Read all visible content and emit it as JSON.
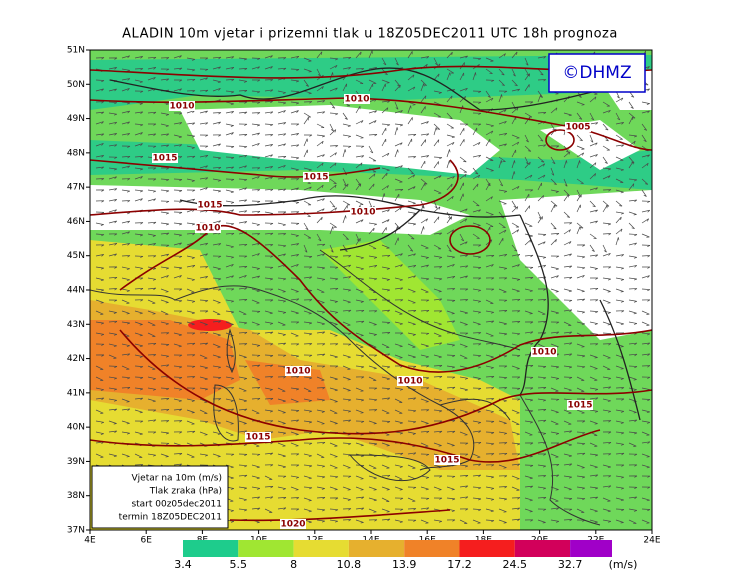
{
  "title": "ALADIN 10m vjetar i prizemni tlak u 18Z05DEC2011 UTC 18h prognoza",
  "logo": "©DHMZ",
  "map": {
    "latlim": [
      37,
      51
    ],
    "lonlim": [
      4,
      24
    ],
    "latticks": [
      {
        "value": 51,
        "label": "51N"
      },
      {
        "value": 50,
        "label": "50N"
      },
      {
        "value": 49,
        "label": "49N"
      },
      {
        "value": 48,
        "label": "48N"
      },
      {
        "value": 47,
        "label": "47N"
      },
      {
        "value": 46,
        "label": "46N"
      },
      {
        "value": 45,
        "label": "45N"
      },
      {
        "value": 44,
        "label": "44N"
      },
      {
        "value": 43,
        "label": "43N"
      },
      {
        "value": 42,
        "label": "42N"
      },
      {
        "value": 41,
        "label": "41N"
      },
      {
        "value": 40,
        "label": "40N"
      },
      {
        "value": 39,
        "label": "39N"
      },
      {
        "value": 38,
        "label": "38N"
      },
      {
        "value": 37,
        "label": "37N"
      }
    ],
    "lonticks": [
      {
        "value": 4,
        "label": "4E"
      },
      {
        "value": 6,
        "label": "6E"
      },
      {
        "value": 8,
        "label": "8E"
      },
      {
        "value": 10,
        "label": "10E"
      },
      {
        "value": 12,
        "label": "12E"
      },
      {
        "value": 14,
        "label": "14E"
      },
      {
        "value": 16,
        "label": "16E"
      },
      {
        "value": 18,
        "label": "18E"
      },
      {
        "value": 20,
        "label": "20E"
      },
      {
        "value": 22,
        "label": "22E"
      },
      {
        "value": 24,
        "label": "24E"
      }
    ],
    "isobar_labels": [
      1010,
      1010,
      1005,
      1015,
      1015,
      1015,
      1010,
      1010,
      1010,
      1010,
      1010,
      1015,
      1015,
      1015,
      1020
    ]
  },
  "legend_box": [
    "Vjetar na 10m (m/s)",
    "Tlak zraka (hPa)",
    "start 00z05dec2011",
    "termin 18Z05DEC2011"
  ],
  "colorbar": {
    "values": [
      3.4,
      5.5,
      8,
      10.8,
      13.9,
      17.2,
      24.5,
      32.7
    ],
    "colors": [
      "#1ecc8c",
      "#a0e632",
      "#e6dc32",
      "#e6b02e",
      "#f08228",
      "#f51e1e",
      "#d2005a",
      "#a000c8"
    ],
    "unit": "(m/s)"
  }
}
